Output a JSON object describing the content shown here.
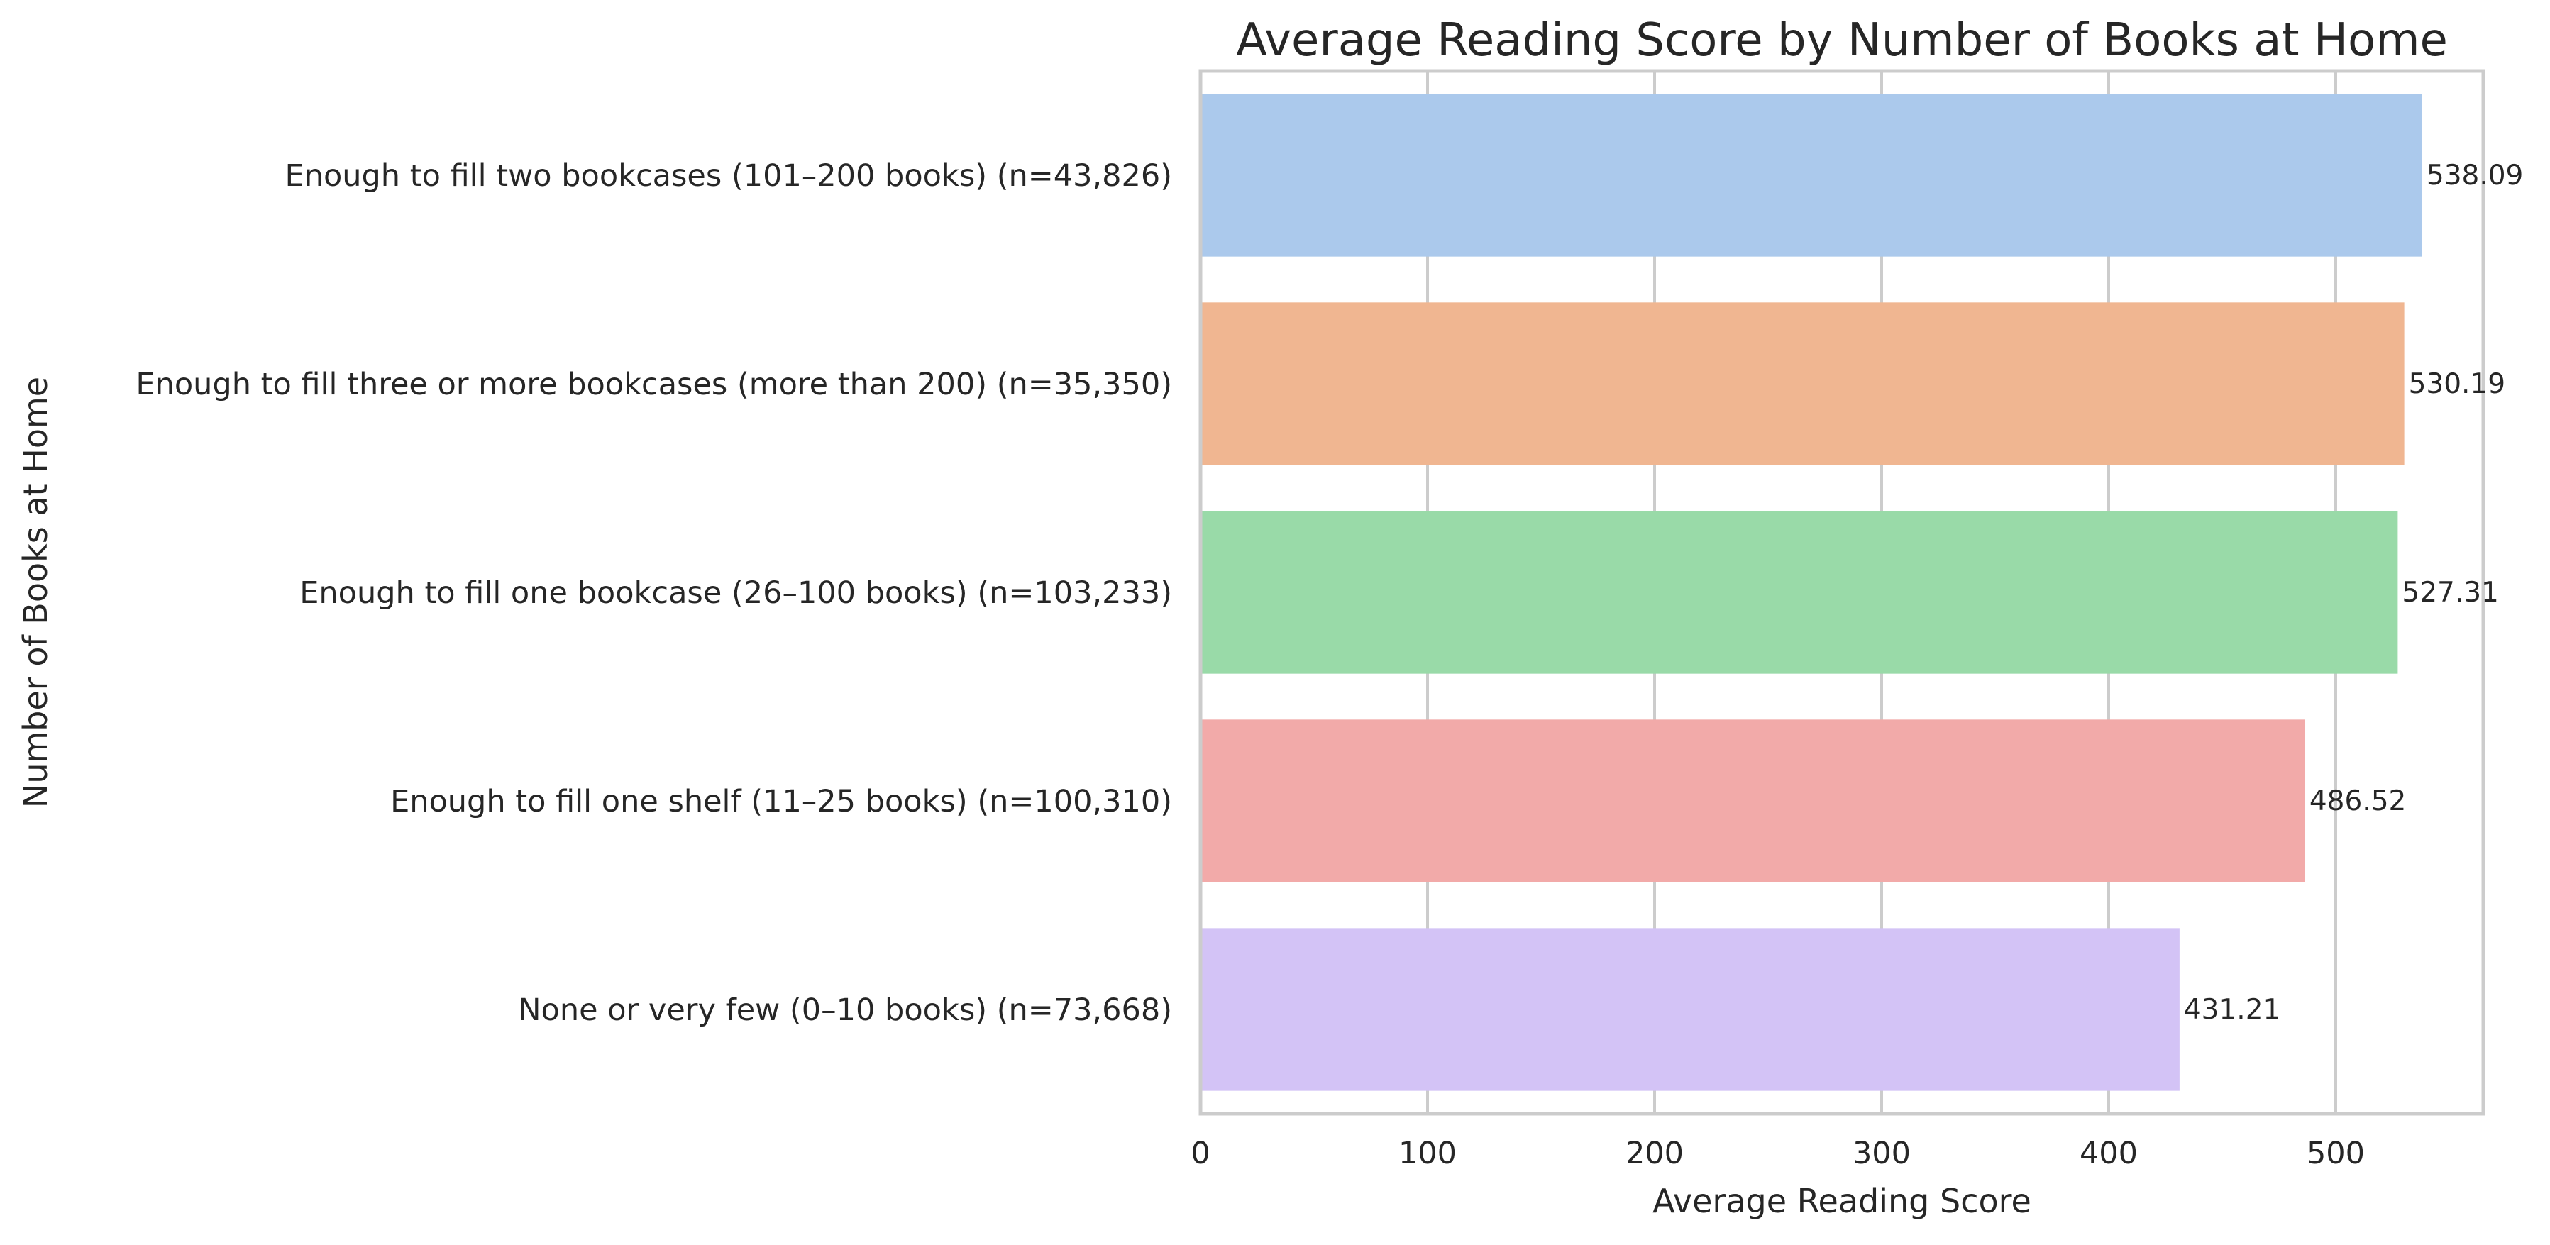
{
  "chart_data": {
    "type": "bar",
    "orientation": "horizontal",
    "title": "Average Reading Score by Number of Books at Home",
    "xlabel": "Average Reading Score",
    "ylabel": "Number of Books at Home",
    "xlim": [
      0,
      565
    ],
    "xticks": [
      0,
      100,
      200,
      300,
      400,
      500
    ],
    "grid": true,
    "categories": [
      "Enough to fill two bookcases (101–200 books) (n=43,826)",
      "Enough to fill three or more bookcases (more than 200) (n=35,350)",
      "Enough to fill one bookcase (26–100 books) (n=103,233)",
      "Enough to fill one shelf (11–25 books) (n=100,310)",
      "None or very few (0–10 books) (n=73,668)"
    ],
    "values": [
      538.09,
      530.19,
      527.31,
      486.52,
      431.21
    ],
    "value_labels": [
      "538.09",
      "530.19",
      "527.31",
      "486.52",
      "431.21"
    ],
    "colors": [
      "#abc9ec",
      "#f0b691",
      "#99daa8",
      "#f2aaa9",
      "#d3c3f6"
    ],
    "grid_color": "#cccccc",
    "spine_color": "#cccccc",
    "text_color": "#262626"
  }
}
